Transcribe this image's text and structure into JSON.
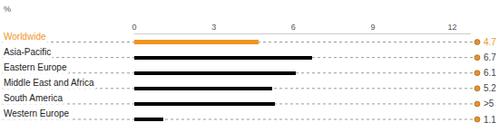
{
  "chart_data": {
    "type": "bar",
    "orientation": "horizontal",
    "xlabel": "%",
    "categories": [
      "Worldwide",
      "Asia-Pacific",
      "Eastern Europe",
      "Middle East and Africa",
      "South America",
      "Western Europe"
    ],
    "values": [
      4.7,
      6.7,
      6.1,
      5.2,
      5.3,
      1.1
    ],
    "value_labels": [
      "4.7",
      "6.7",
      "6.1",
      "5.2",
      ">5",
      "1.1"
    ],
    "colors": [
      "#f0961e",
      "#000000",
      "#000000",
      "#000000",
      "#000000",
      "#000000"
    ],
    "xlim": [
      0,
      12.7
    ],
    "xticks": [
      0,
      3,
      6,
      9,
      12
    ],
    "data_labels": true,
    "grid": false
  }
}
